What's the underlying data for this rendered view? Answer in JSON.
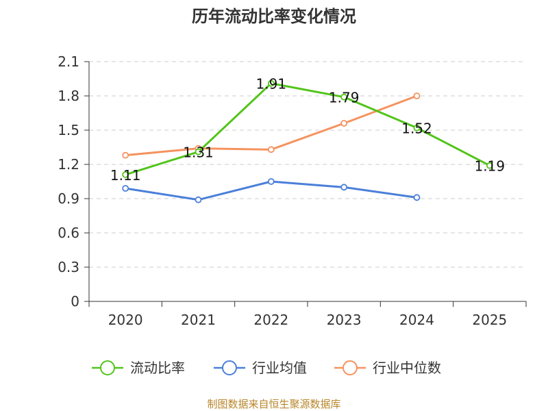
{
  "chart_data": {
    "type": "line",
    "title": "历年流动比率变化情况",
    "categories": [
      "2020",
      "2021",
      "2022",
      "2023",
      "2024",
      "2025"
    ],
    "ylim": [
      0,
      2.1
    ],
    "yticks": [
      "0",
      "0.3",
      "0.6",
      "0.9",
      "1.2",
      "1.5",
      "1.8",
      "2.1"
    ],
    "grid": true,
    "legend_position": "bottom",
    "series": [
      {
        "name": "流动比率",
        "color": "#52c41a",
        "values": [
          1.11,
          1.31,
          1.91,
          1.79,
          1.52,
          1.19
        ],
        "labels": [
          "1.11",
          "1.31",
          "1.91",
          "1.79",
          "1.52",
          "1.19"
        ]
      },
      {
        "name": "行业均值",
        "color": "#4a7fd9",
        "values": [
          0.99,
          0.89,
          1.05,
          1.0,
          0.91,
          null
        ]
      },
      {
        "name": "行业中位数",
        "color": "#f5925e",
        "values": [
          1.28,
          1.34,
          1.33,
          1.56,
          1.8,
          null
        ]
      }
    ],
    "source": "制图数据来自恒生聚源数据库"
  }
}
